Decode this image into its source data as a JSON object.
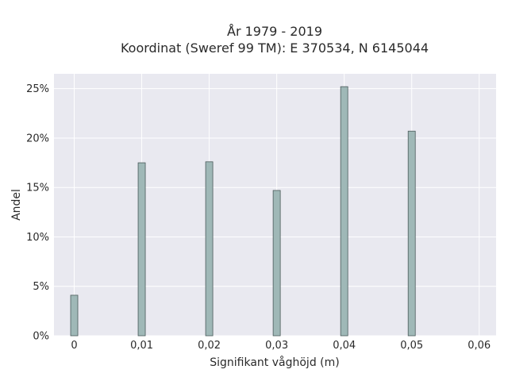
{
  "chart_data": {
    "type": "bar",
    "title": "År 1979 - 2019",
    "subtitle": "Koordinat (Sweref 99 TM): E 370534, N 6145044",
    "xlabel": "Signifikant våghöjd (m)",
    "ylabel": "Andel",
    "x": [
      0,
      0.01,
      0.02,
      0.03,
      0.04,
      0.05
    ],
    "values": [
      4.1,
      17.5,
      17.6,
      14.7,
      25.2,
      20.7
    ],
    "y_unit": "%",
    "xlim": [
      -0.003,
      0.0625
    ],
    "ylim": [
      0,
      26.5
    ],
    "x_ticks": [
      {
        "value": 0,
        "label": "0"
      },
      {
        "value": 0.01,
        "label": "0,01"
      },
      {
        "value": 0.02,
        "label": "0,02"
      },
      {
        "value": 0.03,
        "label": "0,03"
      },
      {
        "value": 0.04,
        "label": "0,04"
      },
      {
        "value": 0.05,
        "label": "0,05"
      },
      {
        "value": 0.06,
        "label": "0,06"
      }
    ],
    "y_ticks": [
      {
        "value": 0,
        "label": "0%"
      },
      {
        "value": 5,
        "label": "5%"
      },
      {
        "value": 10,
        "label": "10%"
      },
      {
        "value": 15,
        "label": "15%"
      },
      {
        "value": 20,
        "label": "20%"
      },
      {
        "value": 25,
        "label": "25%"
      }
    ],
    "grid": true,
    "colors": {
      "bar_fill": "#9fb8b7",
      "bar_edge": "#4a5a5a",
      "plot_bg": "#e9e9f0",
      "grid": "#ffffff"
    }
  }
}
